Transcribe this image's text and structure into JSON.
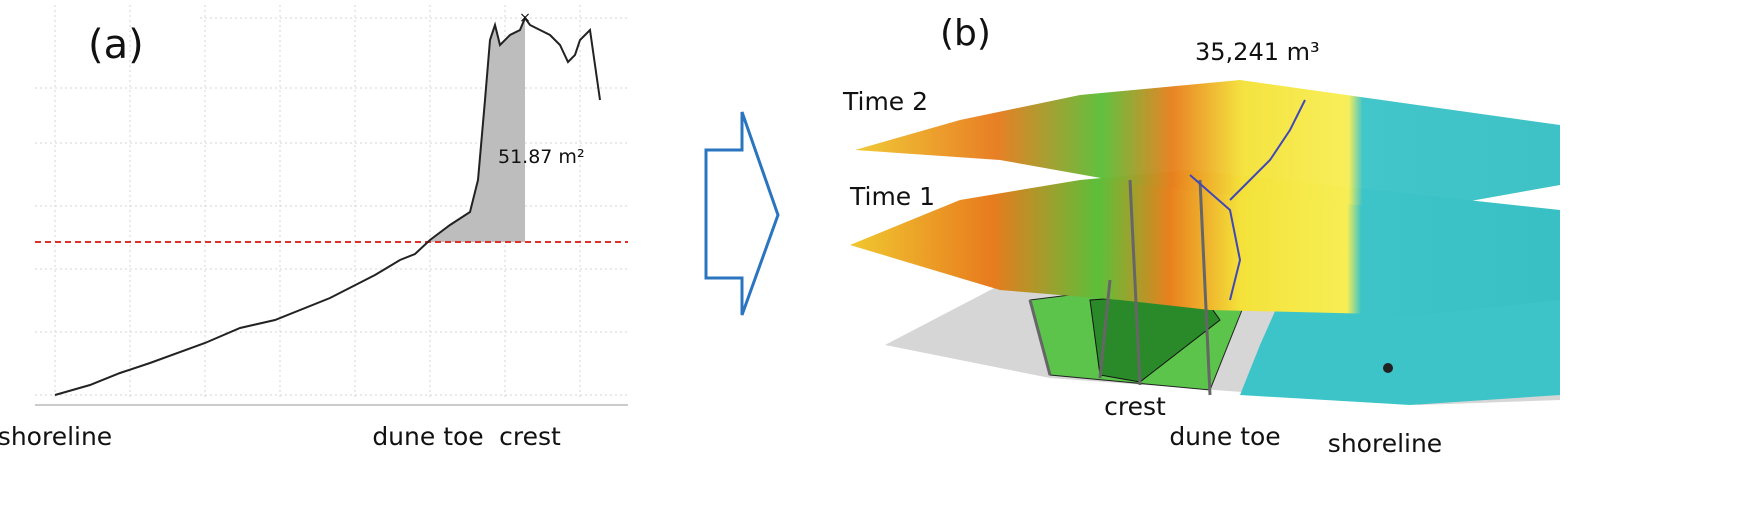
{
  "panel_a": {
    "label": "(a)",
    "area_label": "51.87 m²",
    "x_labels": [
      "shoreline",
      "dune toe",
      "crest"
    ]
  },
  "panel_b": {
    "label": "(b)",
    "volume_label": "35,241 m³",
    "layers": [
      "Time 2",
      "Time 1"
    ],
    "x_labels": [
      "crest",
      "dune toe",
      "shoreline"
    ]
  }
}
